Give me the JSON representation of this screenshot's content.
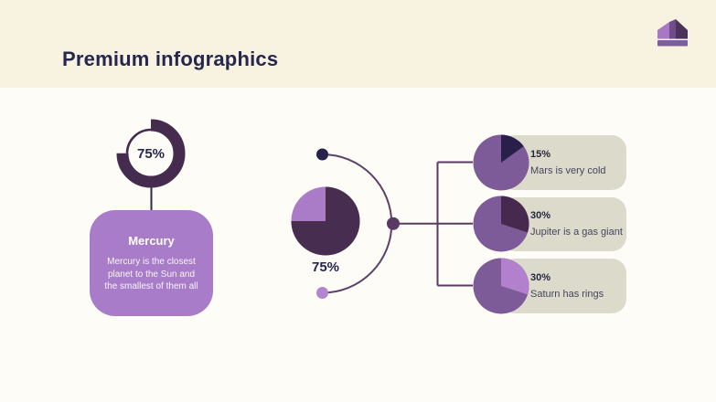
{
  "header": {
    "title": "Premium infographics"
  },
  "left": {
    "donut": {
      "percent": 75,
      "label": "75%"
    },
    "card": {
      "title": "Mercury",
      "description": "Mercury is the closest planet to the Sun and the smallest of them all"
    }
  },
  "center": {
    "pie": {
      "percent": 75,
      "label": "75%",
      "dark_color": "#472e50",
      "light_color": "#aa7cc8"
    }
  },
  "rows": [
    {
      "percent": 15,
      "percent_label": "15%",
      "label": "Mars is very cold",
      "slice_color": "#28204a"
    },
    {
      "percent": 30,
      "percent_label": "30%",
      "label": "Jupiter is a gas giant",
      "slice_color": "#47294f"
    },
    {
      "percent": 30,
      "percent_label": "30%",
      "label": "Saturn has rings",
      "slice_color": "#b181ce"
    }
  ],
  "colors": {
    "header_bg": "#f8f2e0",
    "content_bg": "#fdfcf7",
    "title_text": "#26264f",
    "donut_ring": "#452c4e",
    "percent_text": "#26264f",
    "mercury_card_bg": "#a87cc8",
    "card_text": "#ffffff",
    "stem_connector": "#33294a",
    "arc_connector": "#5d4068",
    "bracket_connector": "#5a3a63",
    "dot_top": "#272349",
    "dot_middle": "#5a3a63",
    "dot_bottom": "#b286ce",
    "row_card_bg": "#dcdacb",
    "row_pie_base": "#7d5a98",
    "row_text": "#26263f",
    "crown_light": "#a778c5",
    "crown_mid": "#6f4d88",
    "crown_dark": "#4c3359",
    "crown_band": "#7c5f98"
  },
  "chart_data": [
    {
      "type": "pie",
      "variant": "donut",
      "title": "Mercury",
      "values": [
        75,
        25
      ],
      "labels": [
        "filled",
        "remaining"
      ],
      "center_label": "75%",
      "note": "Mercury is the closest planet to the Sun and the smallest of them all"
    },
    {
      "type": "pie",
      "title": "75%",
      "values": [
        75,
        25
      ],
      "labels": [
        "dark",
        "light"
      ]
    },
    {
      "type": "pie",
      "title": "Mars is very cold",
      "values": [
        15,
        85
      ],
      "labels": [
        "15%",
        "rest"
      ]
    },
    {
      "type": "pie",
      "title": "Jupiter is a gas giant",
      "values": [
        30,
        70
      ],
      "labels": [
        "30%",
        "rest"
      ]
    },
    {
      "type": "pie",
      "title": "Saturn has rings",
      "values": [
        30,
        70
      ],
      "labels": [
        "30%",
        "rest"
      ]
    }
  ]
}
